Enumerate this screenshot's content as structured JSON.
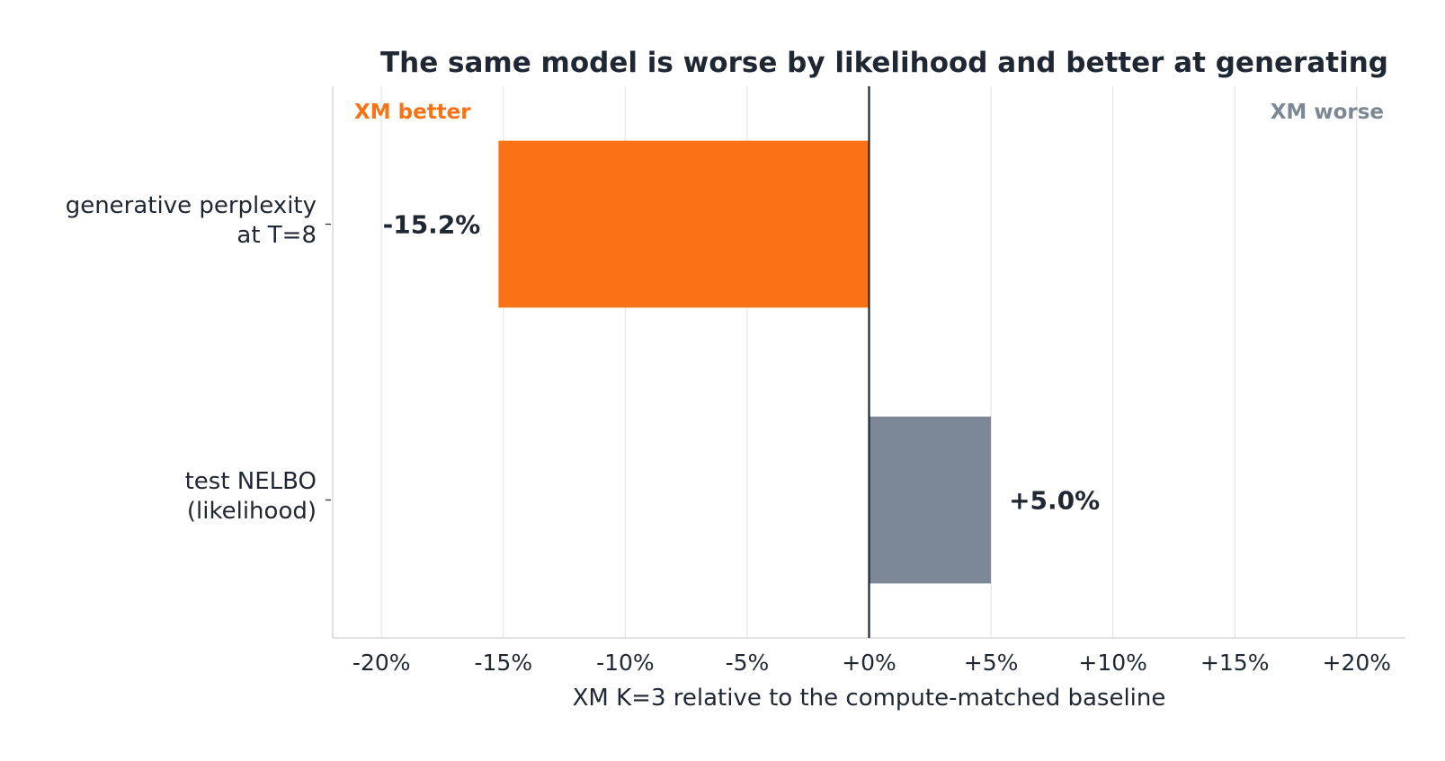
{
  "chart_data": {
    "type": "bar",
    "orientation": "horizontal",
    "title": "The same model is worse by likelihood and better at generating",
    "xlabel": "XM K=3 relative to the compute-matched baseline",
    "ylabel": "",
    "xlim": [
      -22,
      22
    ],
    "xticks": [
      -20,
      -15,
      -10,
      -5,
      0,
      5,
      10,
      15,
      20
    ],
    "xtick_labels": [
      "-20%",
      "-15%",
      "-10%",
      "-5%",
      "+0%",
      "+5%",
      "+10%",
      "+15%",
      "+20%"
    ],
    "categories": [
      [
        "generative perplexity",
        "at T=8"
      ],
      [
        "test NELBO",
        "(likelihood)"
      ]
    ],
    "values": [
      -15.2,
      5.0
    ],
    "value_labels": [
      "-15.2%",
      "+5.0%"
    ],
    "bar_colors": [
      "#f97316",
      "#7d8896"
    ],
    "annotations": {
      "left": {
        "text": "XM better",
        "color": "#f97316"
      },
      "right": {
        "text": "XM worse",
        "color": "#7d8896"
      }
    },
    "grid": "vertical",
    "zero_line": true
  }
}
